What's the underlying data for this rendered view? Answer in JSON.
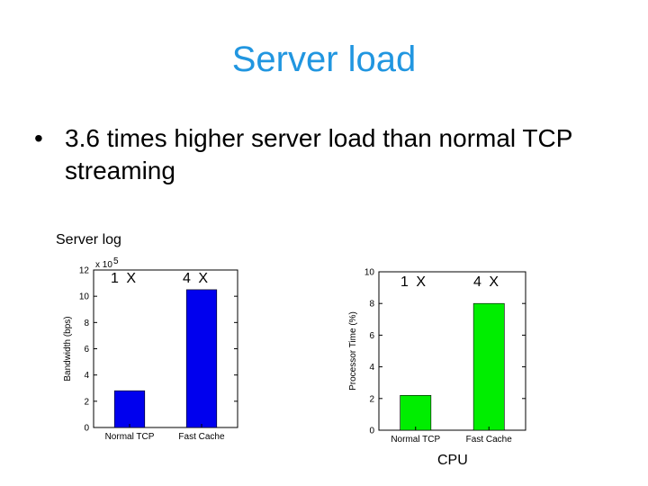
{
  "slide": {
    "title": "Server load",
    "bullet": "3.6 times higher server load than normal TCP streaming",
    "bullet_marker": "•",
    "caption_left": "Server log",
    "caption_right": "CPU"
  },
  "chart_data": [
    {
      "type": "bar",
      "categories": [
        "Normal TCP",
        "Fast Cache"
      ],
      "values": [
        280000,
        1050000
      ],
      "ylabel": "Bandwidth (bps)",
      "ylim": [
        0,
        1200000
      ],
      "yticks": [
        0,
        2,
        4,
        6,
        8,
        10,
        12
      ],
      "tick_multiplier": "x 10",
      "tick_exponent": "5",
      "annotations": [
        "1 X",
        "4 X"
      ],
      "color": "#0000ee",
      "grid": false
    },
    {
      "type": "bar",
      "categories": [
        "Normal TCP",
        "Fast Cache"
      ],
      "values": [
        2.2,
        8.0
      ],
      "ylabel": "Processor Time (%)",
      "ylim": [
        0,
        10
      ],
      "yticks": [
        0,
        2,
        4,
        6,
        8,
        10
      ],
      "annotations": [
        "1 X",
        "4 X"
      ],
      "color": "#00ee00",
      "grid": false
    }
  ]
}
